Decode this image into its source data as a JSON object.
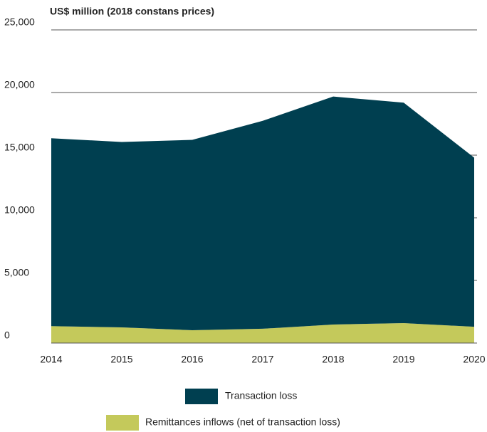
{
  "chart_data": {
    "type": "stacked-area",
    "y_axis_label": "US$ million (2018 constans prices)",
    "categories": [
      "2014",
      "2015",
      "2016",
      "2017",
      "2018",
      "2019",
      "2020"
    ],
    "series": [
      {
        "name": "Remittances inflows (net of transaction loss)",
        "color": "#c4c95b",
        "values": [
          1350,
          1250,
          1020,
          1140,
          1480,
          1590,
          1300
        ]
      },
      {
        "name": "Transaction loss",
        "color": "#003f50",
        "values": [
          15000,
          14800,
          15200,
          16600,
          18200,
          17600,
          13500
        ]
      }
    ],
    "ylim": [
      0,
      25000
    ],
    "yticks": [
      0,
      {
        "value": 5000,
        "label": "5,000"
      },
      {
        "value": 10000,
        "label": "10,000"
      },
      {
        "value": 15000,
        "label": "15,000"
      },
      {
        "value": 20000,
        "label": "20,000"
      },
      {
        "value": 25000,
        "label": "25,000"
      }
    ],
    "grid": true
  }
}
